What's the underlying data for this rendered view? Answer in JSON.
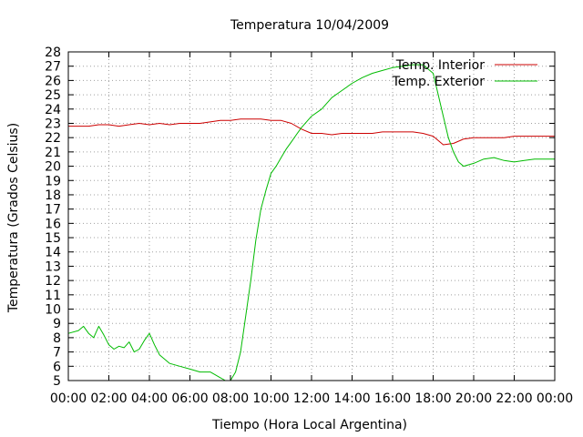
{
  "chart_data": {
    "type": "line",
    "title": "Temperatura 10/04/2009",
    "xlabel": "Tiempo (Hora Local Argentina)",
    "ylabel": "Temperatura (Grados Celsius)",
    "x_unit": "hours",
    "xlim": [
      0,
      24
    ],
    "ylim": [
      5,
      28
    ],
    "x_ticks": [
      0,
      2,
      4,
      6,
      8,
      10,
      12,
      14,
      16,
      18,
      20,
      22,
      24
    ],
    "x_tick_labels": [
      "00:00",
      "02:00",
      "04:00",
      "06:00",
      "08:00",
      "10:00",
      "12:00",
      "14:00",
      "16:00",
      "18:00",
      "20:00",
      "22:00",
      "00:00"
    ],
    "y_ticks": [
      5,
      6,
      7,
      8,
      9,
      10,
      11,
      12,
      13,
      14,
      15,
      16,
      17,
      18,
      19,
      20,
      21,
      22,
      23,
      24,
      25,
      26,
      27,
      28
    ],
    "grid": true,
    "legend_position": "top-right",
    "series": [
      {
        "name": "Temp. Interior",
        "color": "#cc0000",
        "x": [
          0,
          0.5,
          1,
          1.5,
          2,
          2.5,
          3,
          3.5,
          4,
          4.5,
          5,
          5.5,
          6,
          6.5,
          7,
          7.5,
          8,
          8.5,
          9,
          9.5,
          10,
          10.5,
          11,
          11.5,
          12,
          12.5,
          13,
          13.5,
          14,
          14.5,
          15,
          15.5,
          16,
          16.5,
          17,
          17.5,
          18,
          18.5,
          19,
          19.5,
          20,
          20.5,
          21,
          21.5,
          22,
          22.5,
          23,
          23.5,
          24
        ],
        "values": [
          22.8,
          22.8,
          22.8,
          22.9,
          22.9,
          22.8,
          22.9,
          23.0,
          22.9,
          23.0,
          22.9,
          23.0,
          23.0,
          23.0,
          23.1,
          23.2,
          23.2,
          23.3,
          23.3,
          23.3,
          23.2,
          23.2,
          23.0,
          22.6,
          22.3,
          22.3,
          22.2,
          22.3,
          22.3,
          22.3,
          22.3,
          22.4,
          22.4,
          22.4,
          22.4,
          22.3,
          22.1,
          21.5,
          21.6,
          21.9,
          22.0,
          22.0,
          22.0,
          22.0,
          22.1,
          22.1,
          22.1,
          22.1,
          22.1
        ]
      },
      {
        "name": "Temp. Exterior",
        "color": "#00bb00",
        "x": [
          0,
          0.5,
          0.75,
          1,
          1.25,
          1.5,
          1.75,
          2,
          2.25,
          2.5,
          2.75,
          3,
          3.25,
          3.5,
          3.75,
          4,
          4.25,
          4.5,
          5,
          5.5,
          6,
          6.5,
          7,
          7.25,
          7.5,
          7.75,
          8,
          8.25,
          8.5,
          8.75,
          9,
          9.25,
          9.5,
          9.75,
          10,
          10.25,
          10.5,
          10.75,
          11,
          11.25,
          11.5,
          12,
          12.5,
          13,
          13.5,
          14,
          14.5,
          15,
          15.5,
          16,
          16.5,
          17,
          17.5,
          18,
          18.25,
          18.5,
          18.75,
          19,
          19.25,
          19.5,
          20,
          20.5,
          21,
          21.5,
          22,
          22.5,
          23,
          23.5,
          24
        ],
        "values": [
          8.3,
          8.5,
          8.8,
          8.3,
          8.0,
          8.8,
          8.2,
          7.5,
          7.2,
          7.4,
          7.3,
          7.7,
          7.0,
          7.2,
          7.8,
          8.3,
          7.5,
          6.8,
          6.2,
          6.0,
          5.8,
          5.6,
          5.6,
          5.4,
          5.2,
          5.0,
          5.0,
          5.6,
          7.0,
          9.5,
          12.0,
          14.8,
          17.0,
          18.3,
          19.5,
          20.0,
          20.6,
          21.2,
          21.7,
          22.2,
          22.7,
          23.5,
          24.0,
          24.8,
          25.3,
          25.8,
          26.2,
          26.5,
          26.7,
          26.9,
          27.0,
          27.1,
          27.1,
          26.5,
          25.0,
          23.5,
          22.0,
          21.0,
          20.3,
          20.0,
          20.2,
          20.5,
          20.6,
          20.4,
          20.3,
          20.4,
          20.5,
          20.5,
          20.5
        ]
      }
    ]
  }
}
